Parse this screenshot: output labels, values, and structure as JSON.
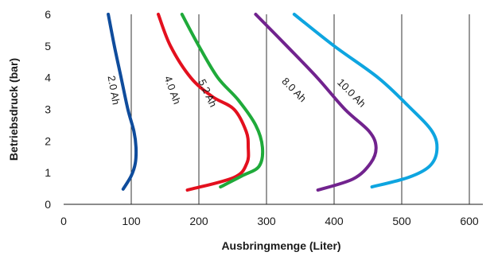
{
  "chart_data": {
    "type": "line",
    "xlabel": "Ausbringmenge (Liter)",
    "ylabel": "Betriebsdruck (bar)",
    "xlim": [
      0,
      620
    ],
    "ylim": [
      0,
      6
    ],
    "xticks": [
      0,
      100,
      200,
      300,
      400,
      500,
      600
    ],
    "yticks": [
      0,
      1,
      2,
      3,
      4,
      5,
      6
    ],
    "grid": "vertical lines at 100-600",
    "series": [
      {
        "name": "2.0 Ah",
        "color": "#0f4c9c",
        "points": [
          [
            66,
            6.0
          ],
          [
            75,
            5.0
          ],
          [
            85,
            4.0
          ],
          [
            95,
            3.0
          ],
          [
            104,
            2.3
          ],
          [
            107,
            1.8
          ],
          [
            106,
            1.3
          ],
          [
            100,
            0.9
          ],
          [
            88,
            0.48
          ]
        ]
      },
      {
        "name": "4.0 Ah",
        "color": "#e3101e",
        "points": [
          [
            140,
            6.0
          ],
          [
            158,
            5.0
          ],
          [
            188,
            4.0
          ],
          [
            220,
            3.4
          ],
          [
            252,
            3.0
          ],
          [
            270,
            2.3
          ],
          [
            273,
            1.8
          ],
          [
            271,
            1.3
          ],
          [
            252,
            0.85
          ],
          [
            183,
            0.45
          ]
        ]
      },
      {
        "name": "5.2 Ah",
        "color": "#1faa3a",
        "points": [
          [
            175,
            6.0
          ],
          [
            200,
            5.0
          ],
          [
            228,
            4.0
          ],
          [
            258,
            3.3
          ],
          [
            284,
            2.5
          ],
          [
            294,
            1.8
          ],
          [
            289,
            1.2
          ],
          [
            264,
            0.9
          ],
          [
            232,
            0.55
          ]
        ]
      },
      {
        "name": "8.0 Ah",
        "color": "#71238e",
        "points": [
          [
            284,
            6.0
          ],
          [
            330,
            5.0
          ],
          [
            375,
            4.0
          ],
          [
            416,
            3.0
          ],
          [
            452,
            2.3
          ],
          [
            462,
            1.8
          ],
          [
            454,
            1.3
          ],
          [
            428,
            0.8
          ],
          [
            376,
            0.45
          ]
        ]
      },
      {
        "name": "10.0 Ah",
        "color": "#0ea5e0",
        "points": [
          [
            341,
            6.0
          ],
          [
            400,
            5.0
          ],
          [
            465,
            4.0
          ],
          [
            510,
            3.1
          ],
          [
            545,
            2.3
          ],
          [
            552,
            1.7
          ],
          [
            541,
            1.2
          ],
          [
            510,
            0.85
          ],
          [
            456,
            0.55
          ]
        ]
      }
    ],
    "annotations": [
      {
        "text": "2.0 Ah",
        "x": 73,
        "y": 3.6,
        "rotate": 80
      },
      {
        "text": "4.0 Ah",
        "x": 160,
        "y": 3.6,
        "rotate": 70
      },
      {
        "text": "5.2 Ah",
        "x": 212,
        "y": 3.5,
        "rotate": 65
      },
      {
        "text": "8.0 Ah",
        "x": 340,
        "y": 3.6,
        "rotate": 45
      },
      {
        "text": "10.0 Ah",
        "x": 425,
        "y": 3.5,
        "rotate": 45
      }
    ]
  }
}
